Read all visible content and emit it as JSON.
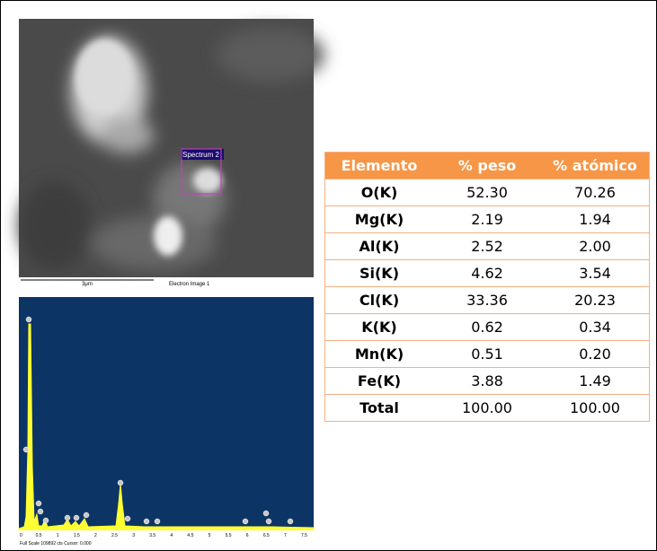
{
  "sem_image": {
    "label": "Spectrum 2",
    "scale": "3μm",
    "caption": "Electron Image 1"
  },
  "spectrum": {
    "x_labels": [
      "0",
      "0.5",
      "1",
      "1.5",
      "2",
      "2.5",
      "3",
      "3.5",
      "4",
      "4.5",
      "5",
      "5.5",
      "6",
      "6.5",
      "7",
      "7.5"
    ],
    "footer": "Full Scale 109892 cts Cursor: 0.000"
  },
  "table": {
    "header": [
      "Elemento",
      "% peso",
      "% atómico"
    ],
    "rows": [
      [
        "O(K)",
        "52.30",
        "70.26"
      ],
      [
        "Mg(K)",
        "2.19",
        "1.94"
      ],
      [
        "Al(K)",
        "2.52",
        "2.00"
      ],
      [
        "Si(K)",
        "4.62",
        "3.54"
      ],
      [
        "Cl(K)",
        "33.36",
        "20.23"
      ],
      [
        "K(K)",
        "0.62",
        "0.34"
      ],
      [
        "Mn(K)",
        "0.51",
        "0.20"
      ],
      [
        "Fe(K)",
        "3.88",
        "1.49"
      ],
      [
        "Total",
        "100.00",
        "100.00"
      ]
    ]
  }
}
